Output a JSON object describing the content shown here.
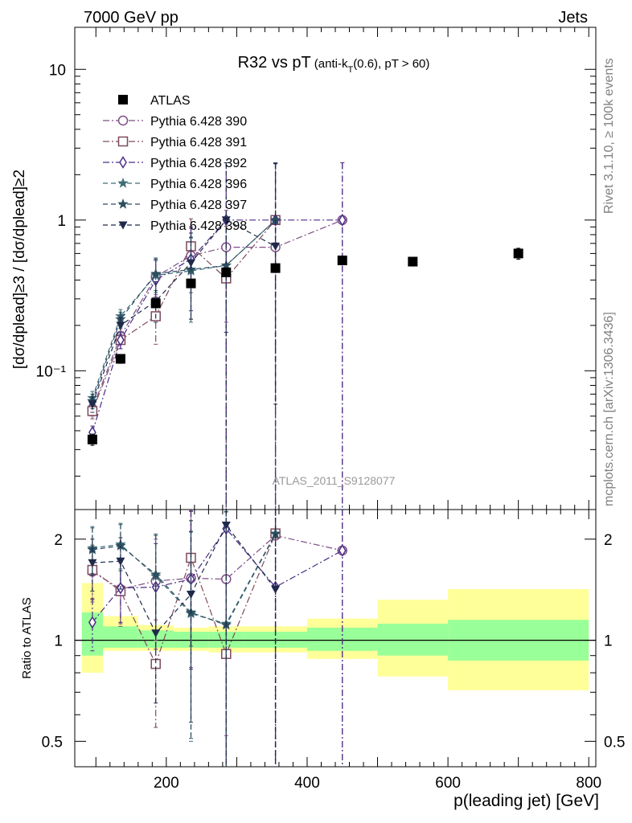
{
  "header": {
    "left": "7000 GeV pp",
    "right": "Jets"
  },
  "side_labels": {
    "rivet": "Rivet 3.1.10, ≥ 100k events",
    "mcplots": "mcplots.cern.ch [arXiv:1306.3436]"
  },
  "analysis_id": "ATLAS_2011_S9128077",
  "chart_data": [
    {
      "type": "scatter",
      "panel": "main",
      "title": "R32 vs pT",
      "title_suffix": "(anti-k_T(0.6), pT > 60)",
      "ylabel": "[dσ/dp_T^lead]^{≥3} / [dσ/dp_T^lead]^{≥2}",
      "xlabel": "p_T(leading jet) [GeV]",
      "xlim": [
        70,
        810
      ],
      "ylim": [
        0.012,
        19
      ],
      "yscale": "log",
      "yticks": [
        {
          "value": 0.1,
          "label": "10⁻¹"
        },
        {
          "value": 1,
          "label": "1"
        },
        {
          "value": 10,
          "label": "10"
        }
      ],
      "xticks": [
        200,
        400,
        600,
        800
      ],
      "legend_position": "top-left",
      "data_bands": [
        [
          80,
          110
        ],
        [
          110,
          160
        ],
        [
          160,
          210
        ],
        [
          210,
          260
        ],
        [
          260,
          310
        ],
        [
          310,
          400
        ],
        [
          400,
          500
        ],
        [
          500,
          600
        ],
        [
          600,
          800
        ]
      ],
      "series": [
        {
          "name": "ATLAS",
          "marker": "square-filled",
          "color": "#000000",
          "line": "none",
          "x": [
            95,
            135,
            185,
            235,
            285,
            355,
            450,
            550,
            700
          ],
          "y": [
            0.035,
            0.12,
            0.28,
            0.38,
            0.45,
            0.48,
            0.54,
            0.53,
            0.6
          ],
          "err_lo": [
            0.003,
            0.008,
            0.015,
            0.02,
            0.02,
            0.02,
            0.025,
            0.035,
            0.05
          ],
          "err_hi": [
            0.003,
            0.008,
            0.015,
            0.02,
            0.02,
            0.02,
            0.025,
            0.035,
            0.05
          ]
        },
        {
          "name": "Pythia 6.428 390",
          "marker": "circle-open",
          "color": "#7e4e86",
          "line": "dashdot",
          "x": [
            95,
            135,
            185,
            235,
            285,
            355,
            450
          ],
          "y": [
            0.056,
            0.17,
            0.42,
            0.58,
            0.66,
            0.66,
            1.0
          ],
          "err_lo": [
            0.006,
            0.02,
            0.1,
            0.25,
            0.45,
            0.66,
            0.999
          ],
          "err_hi": [
            0.006,
            0.02,
            0.12,
            0.3,
            0.5,
            1.7,
            1.4
          ]
        },
        {
          "name": "Pythia 6.428 391",
          "marker": "square-open",
          "color": "#7d4a5c",
          "line": "dashdot",
          "x": [
            95,
            135,
            185,
            235,
            285,
            355
          ],
          "y": [
            0.054,
            0.16,
            0.23,
            0.67,
            0.41,
            1.0
          ],
          "err_lo": [
            0.006,
            0.02,
            0.08,
            0.3,
            0.41,
            0.999
          ],
          "err_hi": [
            0.006,
            0.02,
            0.08,
            0.35,
            0.5,
            1.4
          ]
        },
        {
          "name": "Pythia 6.428 392",
          "marker": "diamond-open",
          "color": "#4a2d86",
          "line": "dashdot",
          "x": [
            95,
            135,
            185,
            235,
            285,
            355,
            450
          ],
          "y": [
            0.039,
            0.16,
            0.4,
            0.55,
            1.0,
            1.0,
            1.0
          ],
          "err_lo": [
            0.004,
            0.02,
            0.12,
            0.3,
            0.999,
            0.999,
            0.999
          ],
          "err_hi": [
            0.004,
            0.02,
            0.14,
            0.35,
            1.4,
            1.4,
            1.4
          ]
        },
        {
          "name": "Pythia 6.428 396",
          "marker": "star",
          "color": "#3e6e78",
          "line": "dashed",
          "x": [
            95,
            135,
            185,
            235,
            285,
            355
          ],
          "y": [
            0.066,
            0.23,
            0.43,
            0.46,
            0.5,
            1.0
          ],
          "err_lo": [
            0.007,
            0.025,
            0.1,
            0.25,
            0.32,
            0.999
          ],
          "err_hi": [
            0.007,
            0.025,
            0.12,
            0.3,
            0.5,
            1.4
          ]
        },
        {
          "name": "Pythia 6.428 397",
          "marker": "star",
          "color": "#2c4e5f",
          "line": "dashed",
          "x": [
            95,
            135,
            185,
            235,
            285,
            355
          ],
          "y": [
            0.063,
            0.22,
            0.44,
            0.47,
            0.5,
            1.0
          ],
          "err_lo": [
            0.007,
            0.025,
            0.1,
            0.25,
            0.32,
            0.999
          ],
          "err_hi": [
            0.007,
            0.025,
            0.12,
            0.3,
            0.5,
            1.4
          ]
        },
        {
          "name": "Pythia 6.428 398",
          "marker": "triangle-down-filled",
          "color": "#1f2a4a",
          "line": "dashed",
          "x": [
            95,
            135,
            185,
            235,
            285,
            355
          ],
          "y": [
            0.06,
            0.2,
            0.29,
            0.52,
            1.0,
            0.67
          ],
          "err_lo": [
            0.007,
            0.025,
            0.08,
            0.3,
            0.999,
            0.61
          ],
          "err_hi": [
            0.007,
            0.025,
            0.1,
            0.3,
            1.4,
            1.7
          ]
        }
      ]
    },
    {
      "type": "scatter",
      "panel": "ratio",
      "ylabel": "Ratio to ATLAS",
      "xlabel": "p_T(leading jet) [GeV]",
      "xlim": [
        70,
        810
      ],
      "ylim": [
        0.42,
        2.45
      ],
      "yscale": "log",
      "yticks": [
        {
          "value": 0.5,
          "label": "0.5"
        },
        {
          "value": 1,
          "label": "1"
        },
        {
          "value": 2,
          "label": "2"
        }
      ],
      "xticks": [
        200,
        400,
        600,
        800
      ],
      "reference_line": 1,
      "bands": [
        {
          "x0": 80,
          "x1": 110,
          "green": [
            0.9,
            1.21
          ],
          "yellow": [
            0.8,
            1.48
          ]
        },
        {
          "x0": 110,
          "x1": 160,
          "green": [
            0.95,
            1.1
          ],
          "yellow": [
            0.93,
            1.18
          ]
        },
        {
          "x0": 160,
          "x1": 210,
          "green": [
            0.95,
            1.07
          ],
          "yellow": [
            0.93,
            1.11
          ]
        },
        {
          "x0": 210,
          "x1": 260,
          "green": [
            0.95,
            1.06
          ],
          "yellow": [
            0.93,
            1.09
          ]
        },
        {
          "x0": 260,
          "x1": 310,
          "green": [
            0.95,
            1.06
          ],
          "yellow": [
            0.92,
            1.1
          ]
        },
        {
          "x0": 310,
          "x1": 400,
          "green": [
            0.95,
            1.06
          ],
          "yellow": [
            0.92,
            1.1
          ]
        },
        {
          "x0": 400,
          "x1": 500,
          "green": [
            0.93,
            1.09
          ],
          "yellow": [
            0.88,
            1.16
          ]
        },
        {
          "x0": 500,
          "x1": 600,
          "green": [
            0.9,
            1.12
          ],
          "yellow": [
            0.78,
            1.32
          ]
        },
        {
          "x0": 600,
          "x1": 800,
          "green": [
            0.87,
            1.15
          ],
          "yellow": [
            0.71,
            1.42
          ]
        }
      ],
      "series": [
        {
          "name": "Pythia 6.428 390",
          "x": [
            95,
            135,
            185,
            235,
            285,
            355,
            450
          ],
          "y": [
            1.6,
            1.42,
            1.5,
            1.53,
            1.52,
            2.05,
            1.85
          ],
          "err_lo": [
            0.3,
            0.3,
            0.5,
            0.7,
            1.0,
            2.0,
            1.84
          ],
          "err_hi": [
            0.3,
            0.3,
            0.5,
            0.9,
            1.3,
            2.0,
            2.0
          ]
        },
        {
          "name": "Pythia 6.428 391",
          "x": [
            95,
            135,
            185,
            235,
            285,
            355
          ],
          "y": [
            1.62,
            1.4,
            0.85,
            1.76,
            0.91,
            2.08
          ],
          "err_lo": [
            0.3,
            0.3,
            0.3,
            0.8,
            0.9,
            2.0
          ],
          "err_hi": [
            0.3,
            0.3,
            0.3,
            0.9,
            1.2,
            2.0
          ]
        },
        {
          "name": "Pythia 6.428 392",
          "x": [
            95,
            135,
            185,
            235,
            285,
            355,
            450
          ],
          "y": [
            1.13,
            1.43,
            1.44,
            1.52,
            2.15,
            1.44,
            1.85
          ],
          "err_lo": [
            0.2,
            0.3,
            0.5,
            0.7,
            2.0,
            1.4,
            1.84
          ],
          "err_hi": [
            0.2,
            0.3,
            0.5,
            0.9,
            2.0,
            2.0,
            2.0
          ]
        },
        {
          "name": "Pythia 6.428 396",
          "x": [
            95,
            135,
            185,
            235,
            285,
            355
          ],
          "y": [
            1.88,
            1.93,
            1.55,
            1.2,
            1.12,
            2.08
          ],
          "err_lo": [
            0.3,
            0.3,
            0.5,
            0.7,
            1.0,
            2.0
          ],
          "err_hi": [
            0.3,
            0.3,
            0.5,
            0.9,
            1.3,
            2.0
          ]
        },
        {
          "name": "Pythia 6.428 397",
          "x": [
            95,
            135,
            185,
            235,
            285,
            355
          ],
          "y": [
            1.86,
            1.91,
            1.57,
            1.21,
            1.11,
            2.07
          ],
          "err_lo": [
            0.3,
            0.3,
            0.5,
            0.7,
            1.0,
            2.0
          ],
          "err_hi": [
            0.3,
            0.3,
            0.5,
            0.9,
            1.3,
            2.0
          ]
        },
        {
          "name": "Pythia 6.428 398",
          "x": [
            95,
            135,
            185,
            235,
            285,
            355
          ],
          "y": [
            1.7,
            1.72,
            1.05,
            1.37,
            2.2,
            1.42
          ],
          "err_lo": [
            0.3,
            0.3,
            0.4,
            0.8,
            2.0,
            1.4
          ],
          "err_hi": [
            0.3,
            0.3,
            0.4,
            0.9,
            2.0,
            2.0
          ]
        }
      ]
    }
  ]
}
